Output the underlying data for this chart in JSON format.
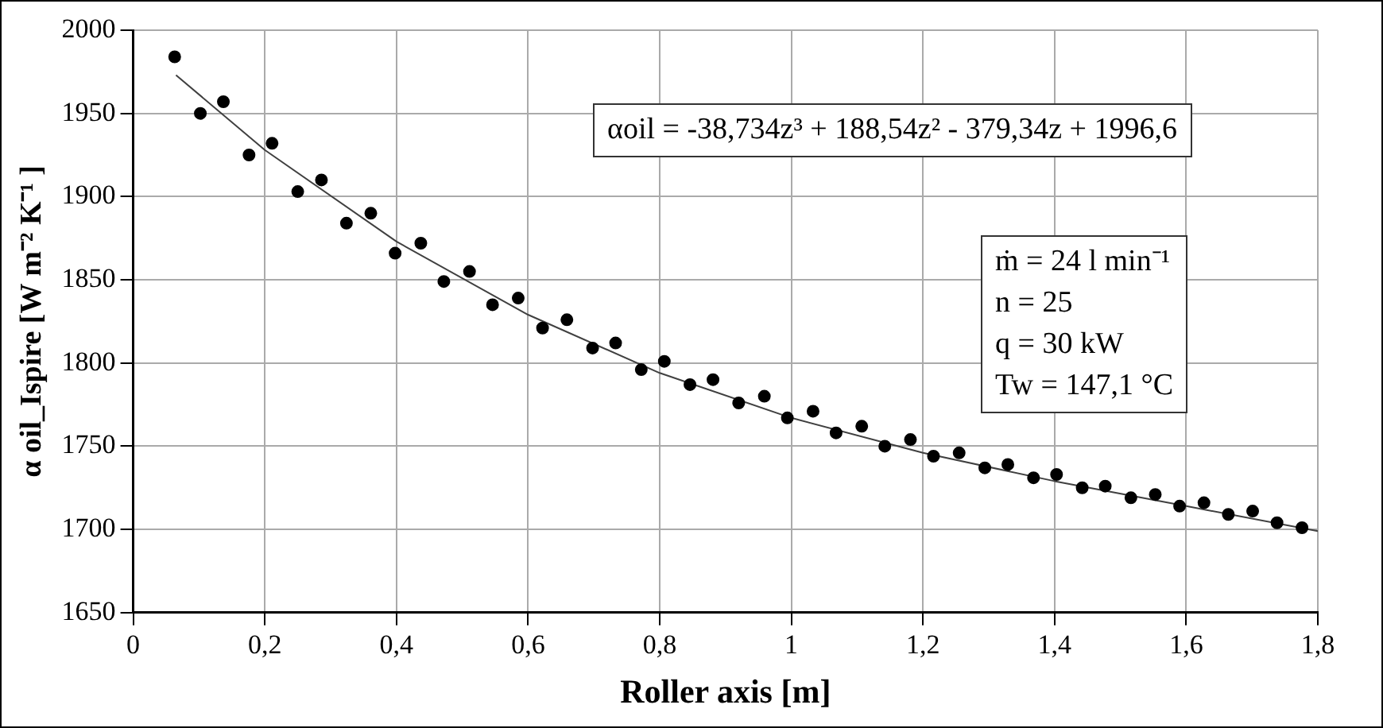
{
  "chart_data": {
    "type": "scatter",
    "xlabel": "Roller axis [m]",
    "ylabel": "α oil_Ispire [W m⁻² K⁻¹ ]",
    "annotations": [
      "αoil = -38,734z³ + 188,54z² - 379,34z + 1996,6",
      "ṁ = 24 l min⁻¹\nn = 25\nq = 30 kW\nTw = 147,1 °C"
    ],
    "series": [
      {
        "type": "scatter",
        "color": "#000000",
        "marker": "circle",
        "x": [
          0.063,
          0.102,
          0.137,
          0.176,
          0.211,
          0.25,
          0.286,
          0.324,
          0.361,
          0.398,
          0.437,
          0.472,
          0.511,
          0.546,
          0.585,
          0.622,
          0.659,
          0.698,
          0.733,
          0.772,
          0.807,
          0.846,
          0.881,
          0.92,
          0.959,
          0.994,
          1.033,
          1.068,
          1.107,
          1.142,
          1.181,
          1.216,
          1.255,
          1.294,
          1.329,
          1.368,
          1.403,
          1.442,
          1.477,
          1.516,
          1.553,
          1.59,
          1.627,
          1.664,
          1.701,
          1.738,
          1.776
        ],
        "values": [
          1984,
          1950,
          1957,
          1925,
          1932,
          1903,
          1910,
          1884,
          1890,
          1866,
          1872,
          1849,
          1855,
          1835,
          1839,
          1821,
          1826,
          1809,
          1812,
          1796,
          1801,
          1787,
          1790,
          1776,
          1780,
          1767,
          1771,
          1758,
          1762,
          1750,
          1754,
          1744,
          1746,
          1737,
          1739,
          1731,
          1733,
          1725,
          1726,
          1719,
          1721,
          1714,
          1716,
          1709,
          1711,
          1704,
          1701
        ]
      },
      {
        "type": "line",
        "color": "#404040",
        "marker": "none",
        "x": [
          0.065,
          0.2,
          0.4,
          0.6,
          0.8,
          1.0,
          1.2,
          1.4,
          1.6,
          1.8
        ],
        "values": [
          1973,
          1928,
          1873,
          1829,
          1794,
          1767,
          1746,
          1729,
          1714,
          1699
        ]
      }
    ],
    "xlim": [
      0,
      1.8
    ],
    "xticks": [
      0,
      {
        "value": 0.2,
        "label": "0,2"
      },
      {
        "value": 0.4,
        "label": "0,4"
      },
      {
        "value": 0.6,
        "label": "0,6"
      },
      {
        "value": 0.8,
        "label": "0,8"
      },
      1,
      {
        "value": 1.2,
        "label": "1,2"
      },
      {
        "value": 1.4,
        "label": "1,4"
      },
      {
        "value": 1.6,
        "label": "1,6"
      },
      {
        "value": 1.8,
        "label": "1,8"
      }
    ],
    "ylim": [
      1650,
      2000
    ],
    "yticks": [
      1650,
      1700,
      1750,
      1800,
      1850,
      1900,
      1950,
      2000
    ],
    "grid": true,
    "legend": false
  }
}
